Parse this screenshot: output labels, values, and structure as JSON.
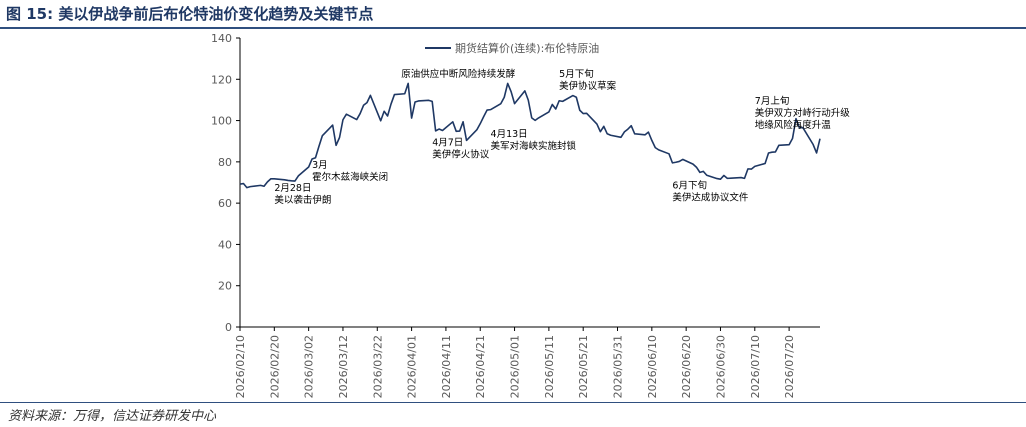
{
  "figure": {
    "title": "图 15:  美以伊战争前后布伦特油价变化趋势及关键节点",
    "source": "资料来源：万得，信达证券研发中心"
  },
  "colors": {
    "series": "#1f3864",
    "title": "#1f3864",
    "axis": "#000000"
  },
  "chart_data": {
    "type": "line",
    "title": "",
    "xlabel": "",
    "ylabel": "",
    "ylim": [
      0,
      140
    ],
    "yticks": [
      0,
      20,
      40,
      60,
      80,
      100,
      120,
      140
    ],
    "grid": false,
    "legend_position": "top-center",
    "x_tick_labels": [
      "2026/02/10",
      "2026/02/20",
      "2026/03/02",
      "2026/03/12",
      "2026/03/22",
      "2026/04/01",
      "2026/04/11",
      "2026/04/21",
      "2026/05/01",
      "2026/05/11",
      "2026/05/21",
      "2026/05/31",
      "2026/06/10",
      "2026/06/20",
      "2026/06/30",
      "2026/07/10",
      "2026/07/20"
    ],
    "series": [
      {
        "name": "期货结算价(连续):布伦特原油",
        "points": [
          [
            "2026/02/10",
            69.2
          ],
          [
            "2026/02/11",
            69.5
          ],
          [
            "2026/02/12",
            67.5
          ],
          [
            "2026/02/13",
            68.0
          ],
          [
            "2026/02/16",
            68.6
          ],
          [
            "2026/02/17",
            68.2
          ],
          [
            "2026/02/18",
            70.3
          ],
          [
            "2026/02/19",
            71.8
          ],
          [
            "2026/02/20",
            71.8
          ],
          [
            "2026/02/23",
            71.3
          ],
          [
            "2026/02/24",
            71.0
          ],
          [
            "2026/02/25",
            70.8
          ],
          [
            "2026/02/26",
            70.7
          ],
          [
            "2026/02/27",
            73.2
          ],
          [
            "2026/03/02",
            77.5
          ],
          [
            "2026/03/03",
            81.4
          ],
          [
            "2026/03/04",
            82.0
          ],
          [
            "2026/03/05",
            87.5
          ],
          [
            "2026/03/06",
            92.7
          ],
          [
            "2026/03/09",
            97.8
          ],
          [
            "2026/03/10",
            88.0
          ],
          [
            "2026/03/11",
            91.8
          ],
          [
            "2026/03/12",
            100.4
          ],
          [
            "2026/03/13",
            103.1
          ],
          [
            "2026/03/16",
            100.5
          ],
          [
            "2026/03/17",
            103.4
          ],
          [
            "2026/03/18",
            107.4
          ],
          [
            "2026/03/19",
            108.7
          ],
          [
            "2026/03/20",
            112.2
          ],
          [
            "2026/03/23",
            99.9
          ],
          [
            "2026/03/24",
            104.5
          ],
          [
            "2026/03/25",
            102.2
          ],
          [
            "2026/03/26",
            108.0
          ],
          [
            "2026/03/27",
            112.6
          ],
          [
            "2026/03/30",
            113.0
          ],
          [
            "2026/03/31",
            118.0
          ],
          [
            "2026/04/01",
            101.2
          ],
          [
            "2026/04/02",
            109.0
          ],
          [
            "2026/04/03",
            109.5
          ],
          [
            "2026/04/06",
            109.8
          ],
          [
            "2026/04/07",
            109.3
          ],
          [
            "2026/04/08",
            95.0
          ],
          [
            "2026/04/09",
            95.9
          ],
          [
            "2026/04/10",
            95.2
          ],
          [
            "2026/04/13",
            99.4
          ],
          [
            "2026/04/14",
            94.8
          ],
          [
            "2026/04/15",
            94.9
          ],
          [
            "2026/04/16",
            99.4
          ],
          [
            "2026/04/17",
            90.4
          ],
          [
            "2026/04/20",
            95.5
          ],
          [
            "2026/04/21",
            98.5
          ],
          [
            "2026/04/22",
            101.9
          ],
          [
            "2026/04/23",
            105.1
          ],
          [
            "2026/04/24",
            105.3
          ],
          [
            "2026/04/27",
            108.2
          ],
          [
            "2026/04/28",
            111.3
          ],
          [
            "2026/04/29",
            118.0
          ],
          [
            "2026/04/30",
            114.0
          ],
          [
            "2026/05/01",
            108.2
          ],
          [
            "2026/05/04",
            114.4
          ],
          [
            "2026/05/05",
            109.9
          ],
          [
            "2026/05/06",
            101.3
          ],
          [
            "2026/05/07",
            100.1
          ],
          [
            "2026/05/08",
            101.3
          ],
          [
            "2026/05/11",
            104.2
          ],
          [
            "2026/05/12",
            107.8
          ],
          [
            "2026/05/13",
            105.6
          ],
          [
            "2026/05/14",
            109.6
          ],
          [
            "2026/05/15",
            109.3
          ],
          [
            "2026/05/18",
            112.1
          ],
          [
            "2026/05/19",
            111.3
          ],
          [
            "2026/05/20",
            105.0
          ],
          [
            "2026/05/21",
            103.4
          ],
          [
            "2026/05/22",
            103.5
          ],
          [
            "2026/05/25",
            98.3
          ],
          [
            "2026/05/26",
            94.6
          ],
          [
            "2026/05/27",
            97.2
          ],
          [
            "2026/05/28",
            93.6
          ],
          [
            "2026/05/29",
            92.9
          ],
          [
            "2026/06/01",
            91.9
          ],
          [
            "2026/06/02",
            94.5
          ],
          [
            "2026/06/03",
            95.8
          ],
          [
            "2026/06/04",
            97.5
          ],
          [
            "2026/06/05",
            93.6
          ],
          [
            "2026/06/08",
            93.1
          ],
          [
            "2026/06/09",
            94.4
          ],
          [
            "2026/06/10",
            90.4
          ],
          [
            "2026/06/11",
            86.9
          ],
          [
            "2026/06/12",
            85.8
          ],
          [
            "2026/06/15",
            83.9
          ],
          [
            "2026/06/16",
            79.5
          ],
          [
            "2026/06/17",
            79.8
          ],
          [
            "2026/06/18",
            80.2
          ],
          [
            "2026/06/19",
            81.2
          ],
          [
            "2026/06/22",
            78.9
          ],
          [
            "2026/06/23",
            77.4
          ],
          [
            "2026/06/24",
            74.9
          ],
          [
            "2026/06/25",
            75.4
          ],
          [
            "2026/06/26",
            73.5
          ],
          [
            "2026/06/29",
            71.9
          ],
          [
            "2026/06/30",
            71.6
          ],
          [
            "2026/07/01",
            73.4
          ],
          [
            "2026/07/02",
            72.0
          ],
          [
            "2026/07/03",
            72.1
          ],
          [
            "2026/07/06",
            72.4
          ],
          [
            "2026/07/07",
            72.0
          ],
          [
            "2026/07/08",
            76.6
          ],
          [
            "2026/07/09",
            76.5
          ],
          [
            "2026/07/10",
            77.8
          ],
          [
            "2026/07/13",
            79.2
          ],
          [
            "2026/07/14",
            84.3
          ],
          [
            "2026/07/15",
            84.7
          ],
          [
            "2026/07/16",
            84.8
          ],
          [
            "2026/07/17",
            88.0
          ],
          [
            "2026/07/20",
            88.3
          ],
          [
            "2026/07/21",
            91.4
          ],
          [
            "2026/07/22",
            100.9
          ],
          [
            "2026/07/23",
            96.5
          ],
          [
            "2026/07/24",
            96.6
          ],
          [
            "2026/07/27",
            88.4
          ],
          [
            "2026/07/28",
            84.3
          ],
          [
            "2026/07/29",
            91.2
          ]
        ]
      }
    ],
    "annotations": [
      {
        "lines": [
          "2月28日",
          "美以袭击伊朗"
        ],
        "anchor": "start",
        "at": [
          "2026/02/20",
          66
        ]
      },
      {
        "lines": [
          "3月",
          "霍尔木兹海峡关闭"
        ],
        "anchor": "start",
        "at": [
          "2026/03/03",
          77
        ]
      },
      {
        "lines": [
          "原油供应中断风险持续发酵"
        ],
        "anchor": "start",
        "at": [
          "2026/03/29",
          121
        ]
      },
      {
        "lines": [
          "4月7日",
          "美伊停火协议"
        ],
        "anchor": "start",
        "at": [
          "2026/04/07",
          88
        ]
      },
      {
        "lines": [
          "4月13日",
          "美军对海峡实施封锁"
        ],
        "anchor": "start",
        "at": [
          "2026/04/24",
          92
        ]
      },
      {
        "lines": [
          "5月下旬",
          "美伊协议草案"
        ],
        "anchor": "start",
        "at": [
          "2026/05/14",
          121
        ]
      },
      {
        "lines": [
          "6月下旬",
          "美伊达成协议文件"
        ],
        "anchor": "start",
        "at": [
          "2026/06/16",
          67
        ]
      },
      {
        "lines": [
          "7月上旬",
          "美伊双方对峙行动升级",
          "地缘风险再度升温"
        ],
        "anchor": "start",
        "at": [
          "2026/07/10",
          108
        ]
      }
    ]
  }
}
